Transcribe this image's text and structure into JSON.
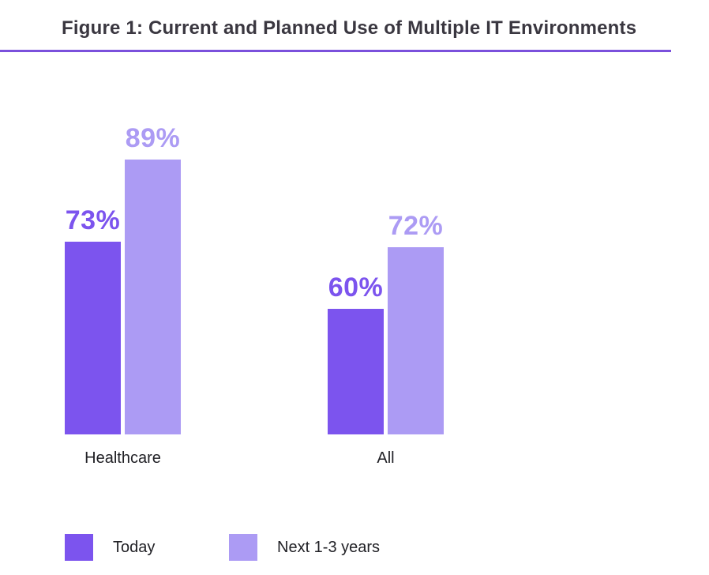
{
  "title": "Figure 1: Current and Planned Use of Multiple IT Environments",
  "accent_line_color": "#7B50DC",
  "chart_data": {
    "type": "bar",
    "title": "Figure 1: Current and Planned Use of Multiple IT Environments",
    "categories": [
      "Healthcare",
      "All"
    ],
    "series": [
      {
        "name": "Today",
        "values": [
          73,
          60
        ],
        "color": "#7C54EE"
      },
      {
        "name": "Next 1-3 years",
        "values": [
          89,
          72
        ],
        "color": "#AC9BF4"
      }
    ],
    "value_suffix": "%",
    "value_labels": {
      "Healthcare": [
        "73%",
        "89%"
      ],
      "All": [
        "60%",
        "72%"
      ]
    },
    "xlabel": "",
    "ylabel": "",
    "grid": false,
    "axes": "hidden",
    "legend_position": "bottom-left"
  },
  "legend": {
    "items": [
      {
        "label": "Today",
        "color": "#7C54EE"
      },
      {
        "label": "Next 1-3 years",
        "color": "#AC9BF4"
      }
    ]
  }
}
